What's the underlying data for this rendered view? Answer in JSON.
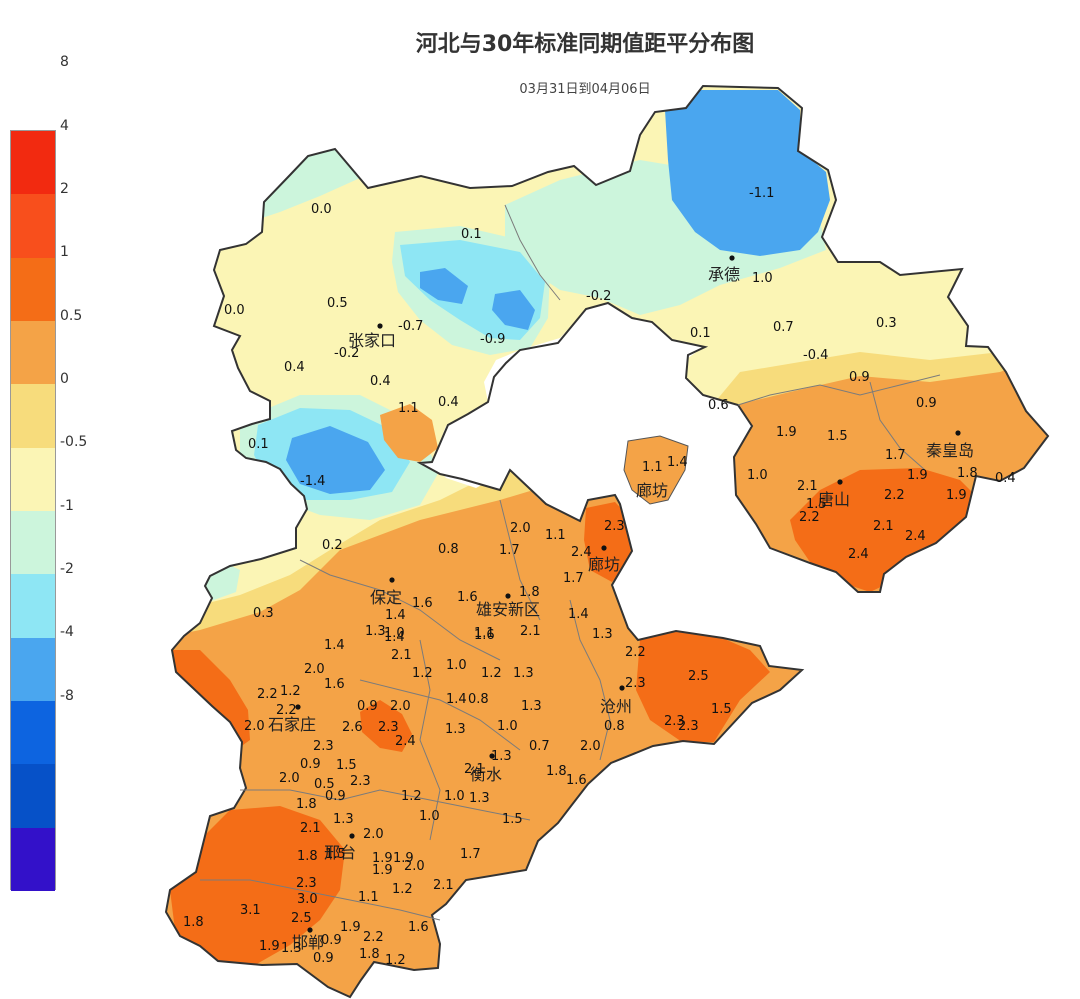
{
  "header": {
    "title": "河北与30年标准同期值距平分布图",
    "subtitle": "03月31日到04月06日"
  },
  "legend": {
    "labels": [
      "8",
      "4",
      "2",
      "1",
      "0.5",
      "0",
      "-0.5",
      "-1",
      "-2",
      "-4",
      "-8"
    ],
    "colors": [
      "#f22a10",
      "#f84f1c",
      "#f46d17",
      "#f4a347",
      "#f7dc7c",
      "#fbf5b5",
      "#ccf5dc",
      "#8ee6f4",
      "#4aa6ef",
      "#0d64e0",
      "#0651c8",
      "#3311c9"
    ]
  },
  "cities": [
    {
      "name": "承德"
    },
    {
      "name": "张家口"
    },
    {
      "name": "秦皇岛"
    },
    {
      "name": "唐山"
    },
    {
      "name": "廊坊"
    },
    {
      "name": "廊坊"
    },
    {
      "name": "保定"
    },
    {
      "name": "雄安新区"
    },
    {
      "name": "沧州"
    },
    {
      "name": "石家庄"
    },
    {
      "name": "衡水"
    },
    {
      "name": "邢台"
    },
    {
      "name": "邯郸"
    }
  ],
  "values": [
    "-1.1",
    "1.0",
    "0.0",
    "0.1",
    "0.5",
    "-0.7",
    "-0.9",
    "-0.2",
    "-0.2",
    "0.0",
    "0.4",
    "0.4",
    "1.1",
    "0.4",
    "0.1",
    "-1.4",
    "0.1",
    "0.7",
    "0.3",
    "-0.4",
    "0.9",
    "0.6",
    "0.9",
    "1.9",
    "1.5",
    "1.7",
    "1.9",
    "1.0",
    "1.8",
    "2.1",
    "1.5",
    "2.2",
    "2.2",
    "1.9",
    "0.4",
    "2.1",
    "2.4",
    "2.4",
    "1.4",
    "1.1",
    "0.2",
    "0.8",
    "2.0",
    "1.7",
    "1.1",
    "2.4",
    "2.3",
    "1.7",
    "0.3",
    "1.6",
    "1.6",
    "1.8",
    "1.4",
    "1.4",
    "1.3",
    "1.0",
    "1.1",
    "2.1",
    "1.3",
    "1.4",
    "2.0",
    "1.6",
    "2.1",
    "1.2",
    "1.0",
    "1.2",
    "1.3",
    "2.2",
    "2.2",
    "1.2",
    "2.2",
    "2.5",
    "2.3",
    "0.9",
    "2.0",
    "1.4",
    "0.8",
    "1.3",
    "2.0",
    "2.6",
    "2.3",
    "2.4",
    "1.3",
    "1.0",
    "1.5",
    "0.8",
    "2.3",
    "2.3",
    "2.3",
    "1.3",
    "0.7",
    "2.0",
    "2.0",
    "0.9",
    "1.5",
    "2.1",
    "1.8",
    "1.6",
    "0.5",
    "2.3",
    "1.8",
    "0.9",
    "1.2",
    "1.0",
    "1.3",
    "1.0",
    "1.5",
    "1.3",
    "2.1",
    "2.0",
    "1.8",
    "1.5",
    "1.9",
    "1.9",
    "2.0",
    "1.7",
    "2.3",
    "3.0",
    "1.1",
    "1.2",
    "2.1",
    "1.8",
    "3.1",
    "2.5",
    "1.9",
    "1.9",
    "1.6",
    "1.3",
    "0.9",
    "2.2",
    "1.8",
    "0.9",
    "1.2",
    "1.6",
    "1.4",
    "1.9"
  ]
}
